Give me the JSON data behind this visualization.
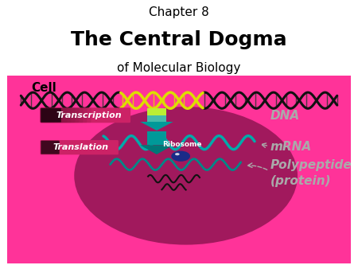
{
  "title_line1": "Chapter 8",
  "title_line2": "The Central Dogma",
  "title_line3": "of Molecular Biology",
  "cell_label": "Cell",
  "dna_label": "DNA",
  "mrna_label": "mRNA",
  "polypeptide_label": "Polypeptide\n(protein)",
  "ribosome_label": "Ribosome",
  "transcription_label": "Transcription",
  "translation_label": "Translation",
  "bg_color": "#ffffff",
  "cell_fill": "#FF3399",
  "dna_black": "#111111",
  "dna_yellow": "#DDDD00",
  "mrna_color": "#00AAAA",
  "arrow_top_color": "#CCEE44",
  "arrow_bot_color": "#009999",
  "label_gray": "#AAAAAA",
  "transcription_box": "#CC2266",
  "translation_box": "#CC2266",
  "dark_glow": "#440022",
  "ribosome_color": "#1A2B88",
  "chain_color": "#111111"
}
